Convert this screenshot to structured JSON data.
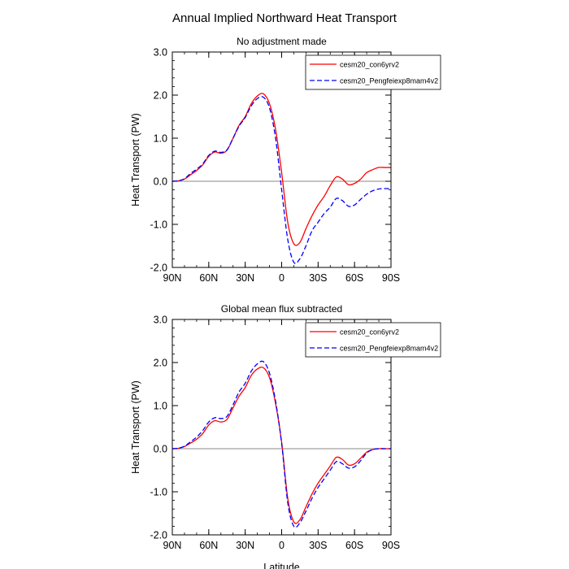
{
  "title": "Annual Implied Northward Heat Transport",
  "chart_data": [
    {
      "type": "line",
      "subtitle": "No adjustment made",
      "xlabel": "",
      "ylabel": "Heat Transport (PW)",
      "xlim": [
        90,
        -90
      ],
      "ylim": [
        -2.0,
        3.0
      ],
      "xticks": [
        90,
        60,
        30,
        0,
        -30,
        -60,
        -90
      ],
      "xticklabels": [
        "90N",
        "60N",
        "30N",
        "0",
        "30S",
        "60S",
        "90S"
      ],
      "yticks": [
        -2.0,
        -1.0,
        0.0,
        1.0,
        2.0,
        3.0
      ],
      "yticklabels": [
        "-2.0",
        "-1.0",
        "0.0",
        "1.0",
        "2.0",
        "3.0"
      ],
      "legend": "top-right",
      "series": [
        {
          "name": "cesm20_con6yrv2",
          "color": "#ff0000",
          "dash": "solid",
          "x": [
            90,
            85,
            80,
            75,
            70,
            65,
            60,
            55,
            50,
            45,
            40,
            35,
            30,
            25,
            20,
            15,
            10,
            5,
            0,
            -5,
            -10,
            -15,
            -20,
            -25,
            -30,
            -35,
            -40,
            -45,
            -50,
            -55,
            -60,
            -65,
            -70,
            -75,
            -80,
            -85,
            -90
          ],
          "y": [
            0.0,
            0.01,
            0.05,
            0.15,
            0.25,
            0.38,
            0.58,
            0.68,
            0.65,
            0.72,
            1.0,
            1.3,
            1.5,
            1.8,
            1.98,
            2.03,
            1.8,
            1.2,
            0.2,
            -0.95,
            -1.45,
            -1.42,
            -1.1,
            -0.8,
            -0.55,
            -0.35,
            -0.1,
            0.1,
            0.05,
            -0.08,
            -0.05,
            0.05,
            0.2,
            0.27,
            0.32,
            0.32,
            0.32
          ]
        },
        {
          "name": "cesm20_Pengfeiexp8mam4v2",
          "color": "#0000ff",
          "dash": "dashed",
          "x": [
            90,
            85,
            80,
            75,
            70,
            65,
            60,
            55,
            50,
            45,
            40,
            35,
            30,
            25,
            20,
            15,
            10,
            5,
            0,
            -5,
            -10,
            -15,
            -20,
            -25,
            -30,
            -35,
            -40,
            -45,
            -50,
            -55,
            -60,
            -65,
            -70,
            -75,
            -80,
            -85,
            -90
          ],
          "y": [
            0.0,
            0.01,
            0.06,
            0.18,
            0.28,
            0.4,
            0.6,
            0.7,
            0.67,
            0.73,
            1.0,
            1.28,
            1.48,
            1.75,
            1.92,
            1.95,
            1.7,
            1.0,
            -0.2,
            -1.35,
            -1.88,
            -1.8,
            -1.5,
            -1.15,
            -0.95,
            -0.75,
            -0.6,
            -0.4,
            -0.45,
            -0.58,
            -0.55,
            -0.42,
            -0.3,
            -0.22,
            -0.18,
            -0.17,
            -0.17
          ]
        }
      ]
    },
    {
      "type": "line",
      "subtitle": "Global mean flux subtracted",
      "xlabel": "Latitude",
      "ylabel": "Heat Transport (PW)",
      "xlim": [
        90,
        -90
      ],
      "ylim": [
        -2.0,
        3.0
      ],
      "xticks": [
        90,
        60,
        30,
        0,
        -30,
        -60,
        -90
      ],
      "xticklabels": [
        "90N",
        "60N",
        "30N",
        "0",
        "30S",
        "60S",
        "90S"
      ],
      "yticks": [
        -2.0,
        -1.0,
        0.0,
        1.0,
        2.0,
        3.0
      ],
      "yticklabels": [
        "-2.0",
        "-1.0",
        "0.0",
        "1.0",
        "2.0",
        "3.0"
      ],
      "legend": "top-right",
      "series": [
        {
          "name": "cesm20_con6yrv2",
          "color": "#ff0000",
          "dash": "solid",
          "x": [
            90,
            85,
            80,
            75,
            70,
            65,
            60,
            55,
            50,
            45,
            40,
            35,
            30,
            25,
            20,
            15,
            10,
            5,
            0,
            -5,
            -10,
            -15,
            -20,
            -25,
            -30,
            -35,
            -40,
            -45,
            -50,
            -55,
            -60,
            -65,
            -70,
            -75,
            -80,
            -85,
            -90
          ],
          "y": [
            0.0,
            0.01,
            0.05,
            0.13,
            0.22,
            0.35,
            0.55,
            0.65,
            0.62,
            0.68,
            0.95,
            1.22,
            1.42,
            1.7,
            1.85,
            1.88,
            1.65,
            1.05,
            0.15,
            -1.15,
            -1.7,
            -1.65,
            -1.35,
            -1.05,
            -0.8,
            -0.6,
            -0.4,
            -0.2,
            -0.25,
            -0.38,
            -0.35,
            -0.22,
            -0.08,
            -0.02,
            0.0,
            0.0,
            0.0
          ]
        },
        {
          "name": "cesm20_Pengfeiexp8mam4v2",
          "color": "#0000ff",
          "dash": "dashed",
          "x": [
            90,
            85,
            80,
            75,
            70,
            65,
            60,
            55,
            50,
            45,
            40,
            35,
            30,
            25,
            20,
            15,
            10,
            5,
            0,
            -5,
            -10,
            -15,
            -20,
            -25,
            -30,
            -35,
            -40,
            -45,
            -50,
            -55,
            -60,
            -65,
            -70,
            -75,
            -80,
            -85,
            -90
          ],
          "y": [
            0.0,
            0.01,
            0.06,
            0.16,
            0.27,
            0.42,
            0.62,
            0.72,
            0.7,
            0.75,
            1.02,
            1.32,
            1.52,
            1.8,
            1.97,
            2.02,
            1.75,
            1.1,
            0.12,
            -1.25,
            -1.8,
            -1.72,
            -1.45,
            -1.15,
            -0.9,
            -0.7,
            -0.5,
            -0.3,
            -0.35,
            -0.45,
            -0.42,
            -0.28,
            -0.1,
            -0.02,
            0.0,
            0.0,
            0.0
          ]
        }
      ]
    }
  ]
}
